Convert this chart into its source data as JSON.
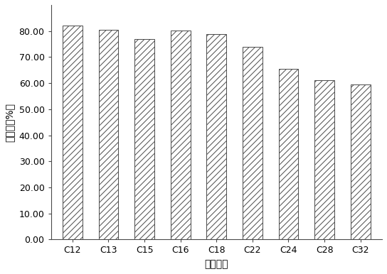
{
  "categories": [
    "C12",
    "C13",
    "C15",
    "C16",
    "C18",
    "C22",
    "C24",
    "C28",
    "C32"
  ],
  "values": [
    82.2,
    80.5,
    77.0,
    80.2,
    78.8,
    74.0,
    65.5,
    61.2,
    59.5
  ],
  "xlabel": "正构烷烶",
  "ylabel": "降解率（%）",
  "ylim": [
    0,
    90
  ],
  "yticks": [
    0.0,
    10.0,
    20.0,
    30.0,
    40.0,
    50.0,
    60.0,
    70.0,
    80.0
  ],
  "bar_color": "#ffffff",
  "bar_edgecolor": "#4a4a4a",
  "hatch": "////",
  "hatch_color": "#aaaaaa",
  "background_color": "#ffffff",
  "figsize": [
    5.44,
    3.86
  ],
  "dpi": 100,
  "ylabel_fontsize": 10,
  "xlabel_fontsize": 10,
  "tick_fontsize": 9,
  "bar_width": 0.55
}
